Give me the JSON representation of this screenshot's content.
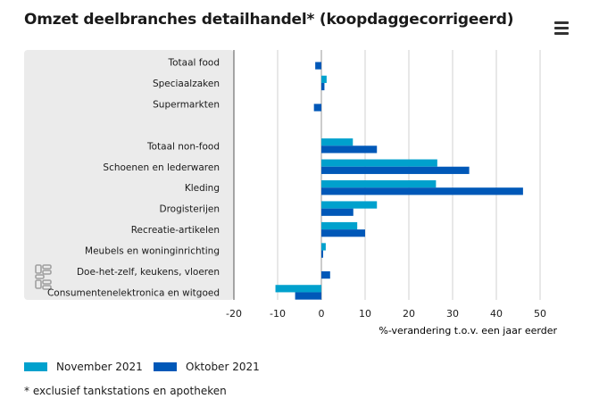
{
  "title": "Omzet deelbranches detailhandel* (koopdaggecorrigeerd)",
  "menu_icon": "hamburger-menu-icon",
  "footnote": "* exclusief tankstations en apotheken",
  "colors": {
    "november": "#00a1cd",
    "oktober": "#0058b8",
    "panel": "#ebebeb",
    "grid": "#d0d0d0"
  },
  "chart_data": {
    "type": "bar",
    "orientation": "horizontal",
    "categories": [
      "Totaal food",
      "Speciaalzaken",
      "Supermarkten",
      "",
      "Totaal non-food",
      "Schoenen en lederwaren",
      "Kleding",
      "Drogisterijen",
      "Recreatie-artikelen",
      "Meubels en woninginrichting",
      "Doe-het-zelf, keukens, vloeren",
      "Consumentenelektronica en witgoed"
    ],
    "series": [
      {
        "name": "November 2021",
        "color": "#00a1cd",
        "values": [
          0,
          1.2,
          0,
          null,
          7.2,
          26.5,
          26.2,
          12.7,
          8.2,
          1.0,
          0,
          -10.5
        ]
      },
      {
        "name": "Oktober 2021",
        "color": "#0058b8",
        "values": [
          -1.4,
          0.7,
          -1.7,
          null,
          12.7,
          33.8,
          46.1,
          7.3,
          10.0,
          0.4,
          2.0,
          -6.0
        ]
      }
    ],
    "xlabel": "%-verandering t.o.v. een jaar eerder",
    "xlim": [
      -20,
      50
    ],
    "xticks": [
      -20,
      -10,
      0,
      10,
      20,
      30,
      40,
      50
    ],
    "grid": true,
    "legend_position": "bottom-left"
  }
}
